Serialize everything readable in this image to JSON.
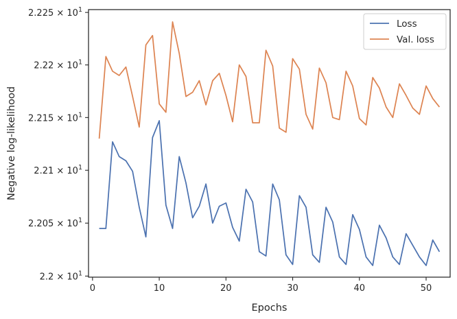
{
  "chart_data": {
    "type": "line",
    "xlabel": "Epochs",
    "ylabel": "Negative log-likelihood",
    "xlim": [
      -0.6,
      53.6
    ],
    "ylim": [
      21.999,
      22.2527
    ],
    "y_scale": "log",
    "grid": false,
    "legend_position": "top-right",
    "x_ticks": [
      0,
      10,
      20,
      30,
      40,
      50
    ],
    "x_tick_labels": [
      "0",
      "10",
      "20",
      "30",
      "40",
      "50"
    ],
    "y_ticks": [
      22.0,
      22.05,
      22.1,
      22.15,
      22.2,
      22.25
    ],
    "y_tick_labels": [
      {
        "mantissa": "2.2",
        "times": "× 10",
        "exp": "1"
      },
      {
        "mantissa": "2.205",
        "times": "× 10",
        "exp": "1"
      },
      {
        "mantissa": "2.21",
        "times": "× 10",
        "exp": "1"
      },
      {
        "mantissa": "2.215",
        "times": "× 10",
        "exp": "1"
      },
      {
        "mantissa": "2.22",
        "times": "× 10",
        "exp": "1"
      },
      {
        "mantissa": "2.225",
        "times": "× 10",
        "exp": "1"
      }
    ],
    "x": [
      1,
      2,
      3,
      4,
      5,
      6,
      7,
      8,
      9,
      10,
      11,
      12,
      13,
      14,
      15,
      16,
      17,
      18,
      19,
      20,
      21,
      22,
      23,
      24,
      25,
      26,
      27,
      28,
      29,
      30,
      31,
      32,
      33,
      34,
      35,
      36,
      37,
      38,
      39,
      40,
      41,
      42,
      43,
      44,
      45,
      46,
      47,
      48,
      49,
      50,
      51,
      52
    ],
    "series": [
      {
        "name": "Loss",
        "color": "#4c72b0",
        "values": [
          22.045,
          22.045,
          22.127,
          22.113,
          22.109,
          22.099,
          22.065,
          22.037,
          22.131,
          22.147,
          22.067,
          22.045,
          22.113,
          22.088,
          22.055,
          22.066,
          22.087,
          22.05,
          22.066,
          22.069,
          22.046,
          22.033,
          22.082,
          22.07,
          22.023,
          22.019,
          22.087,
          22.072,
          22.02,
          22.011,
          22.076,
          22.065,
          22.02,
          22.013,
          22.065,
          22.051,
          22.018,
          22.011,
          22.058,
          22.044,
          22.018,
          22.01,
          22.048,
          22.036,
          22.018,
          22.011,
          22.04,
          22.029,
          22.018,
          22.01,
          22.034,
          22.023
        ]
      },
      {
        "name": "Val. loss",
        "color": "#dd8452",
        "values": [
          22.13,
          22.208,
          22.194,
          22.19,
          22.198,
          22.17,
          22.141,
          22.219,
          22.228,
          22.163,
          22.155,
          22.241,
          22.211,
          22.17,
          22.174,
          22.185,
          22.162,
          22.185,
          22.192,
          22.171,
          22.146,
          22.2,
          22.189,
          22.145,
          22.145,
          22.214,
          22.199,
          22.14,
          22.136,
          22.206,
          22.196,
          22.153,
          22.139,
          22.197,
          22.183,
          22.15,
          22.148,
          22.194,
          22.18,
          22.149,
          22.143,
          22.188,
          22.178,
          22.16,
          22.15,
          22.182,
          22.171,
          22.159,
          22.153,
          22.18,
          22.168,
          22.16
        ]
      }
    ]
  }
}
